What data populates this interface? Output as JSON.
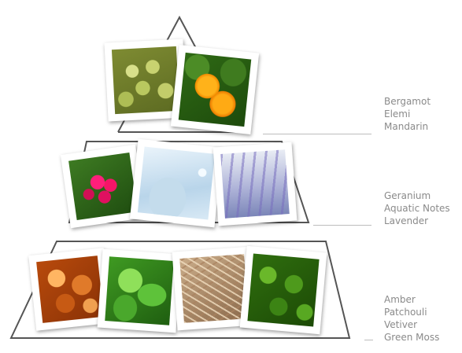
{
  "diagram": {
    "tiers": [
      {
        "id": "top",
        "notes": [
          "Bergamot",
          "Elemi",
          "Mandarin"
        ],
        "photos": [
          {
            "name": "lime-photo",
            "fill": "lime"
          },
          {
            "name": "mandarin-photo",
            "fill": "mandarin"
          }
        ]
      },
      {
        "id": "middle",
        "notes": [
          "Geranium",
          "Aquatic Notes",
          "Lavender"
        ],
        "photos": [
          {
            "name": "geranium-photo",
            "fill": "geranium"
          },
          {
            "name": "aquatic-photo",
            "fill": "aquatic"
          },
          {
            "name": "lavender-photo",
            "fill": "lavender"
          }
        ]
      },
      {
        "id": "base",
        "notes": [
          "Amber",
          "Patchouli",
          "Vetiver",
          "Green Moss"
        ],
        "photos": [
          {
            "name": "amber-photo",
            "fill": "amber"
          },
          {
            "name": "patchouli-photo",
            "fill": "patchouli"
          },
          {
            "name": "vetiver-photo",
            "fill": "vetiver"
          },
          {
            "name": "moss-photo",
            "fill": "moss"
          }
        ]
      }
    ],
    "colors": {
      "outline": "#555555",
      "notes_text": "#8a8a8a",
      "leader_line": "#bdbdbd"
    }
  }
}
